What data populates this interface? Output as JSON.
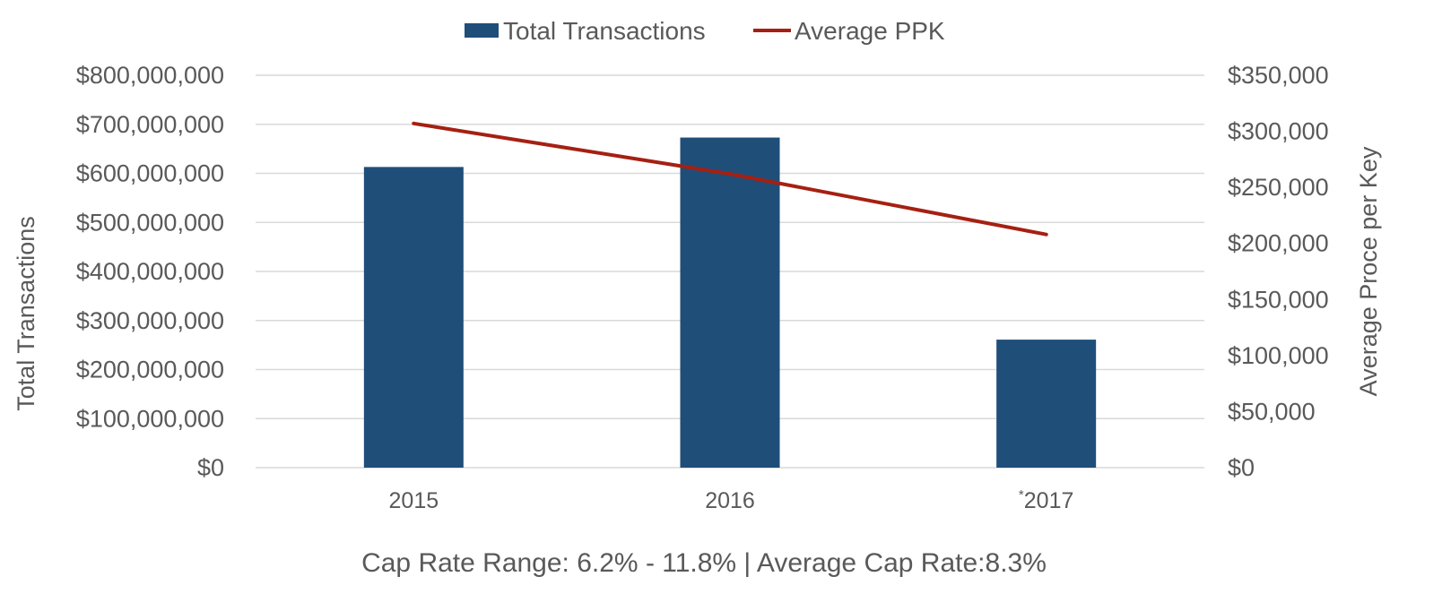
{
  "chart_data": {
    "type": "bar",
    "categories": [
      "2015",
      "2016",
      "2017"
    ],
    "category_prefixes": [
      "",
      "",
      "*"
    ],
    "series": [
      {
        "name": "Total Transactions",
        "kind": "bar",
        "axis": "left",
        "values": [
          613000000,
          673000000,
          261000000
        ]
      },
      {
        "name": "Average PPK",
        "kind": "line",
        "axis": "right",
        "values": [
          307000,
          262000,
          208000
        ]
      }
    ],
    "ylabel": "Total Transactions",
    "ylabel_right": "Average Proce per Key",
    "ylim": [
      0,
      800000000
    ],
    "ylim_right": [
      0,
      350000
    ],
    "yticks": [
      "$0",
      "$100,000,000",
      "$200,000,000",
      "$300,000,000",
      "$400,000,000",
      "$500,000,000",
      "$600,000,000",
      "$700,000,000",
      "$800,000,000"
    ],
    "yticks_right": [
      "$0",
      "$50,000",
      "$100,000",
      "$150,000",
      "$200,000",
      "$250,000",
      "$300,000",
      "$350,000"
    ],
    "grid": true,
    "legend_position": "top-center",
    "caption": "Cap Rate Range: 6.2% - 11.8% | Average Cap Rate:8.3%",
    "colors": {
      "bar": "#1f4e79",
      "line": "#a52012",
      "grid": "#d9d9d9",
      "text": "#595959"
    }
  }
}
